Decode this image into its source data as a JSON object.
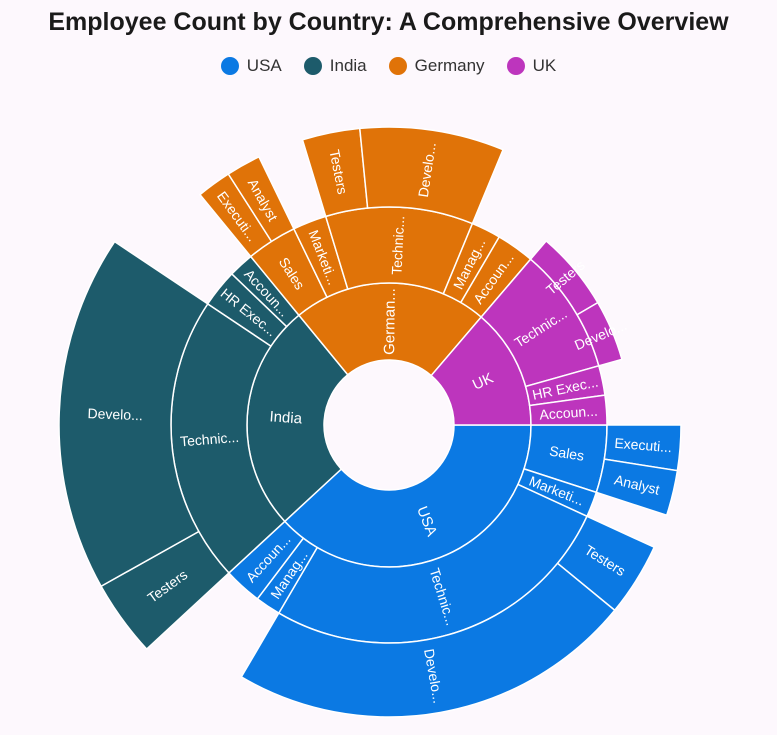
{
  "chart_data": {
    "type": "sunburst",
    "title": "Employee Count by Country: A Comprehensive Overview",
    "legend_position": "top",
    "series": [
      {
        "name": "USA",
        "color": "#0b79e3",
        "labels": {
          "country": "USA",
          "branches": [
            "Sales",
            "Marketi...",
            "Technic...",
            "Manag...",
            "Accoun..."
          ],
          "leaves": [
            "Executi...",
            "Analyst",
            "Testers",
            "Develo..."
          ]
        }
      },
      {
        "name": "India",
        "color": "#1d5b6b",
        "labels": {
          "country": "India",
          "branches": [
            "Technic...",
            "HR Exec...",
            "Accoun..."
          ],
          "leaves": [
            "Testers",
            "Develo..."
          ]
        }
      },
      {
        "name": "Germany",
        "color": "#e07308",
        "labels": {
          "country": "German...",
          "branches": [
            "Sales",
            "Marketi...",
            "Technic...",
            "Manag...",
            "Accoun..."
          ],
          "leaves": [
            "Executi...",
            "Analyst",
            "Testers",
            "Develo..."
          ]
        }
      },
      {
        "name": "UK",
        "color": "#bd35bd",
        "labels": {
          "country": "UK",
          "branches": [
            "Technic...",
            "HR Exec...",
            "Accoun..."
          ],
          "leaves": [
            "Testers",
            "Develo..."
          ]
        }
      }
    ],
    "hierarchy": [
      {
        "name": "USA",
        "color": "#0b79e3",
        "label": "USA",
        "value": 122,
        "children": [
          {
            "name": "Sales",
            "label": "Sales",
            "value": 16,
            "children": [
              {
                "name": "Executive",
                "label": "Executi...",
                "value": 8
              },
              {
                "name": "Analyst",
                "label": "Analyst",
                "value": 8
              }
            ]
          },
          {
            "name": "Marketing",
            "label": "Marketi...",
            "value": 6
          },
          {
            "name": "Technical",
            "label": "Technic...",
            "value": 85,
            "children": [
              {
                "name": "Testers",
                "label": "Testers",
                "value": 13
              },
              {
                "name": "Developers",
                "label": "Develo...",
                "value": 72
              }
            ]
          },
          {
            "name": "Management",
            "label": "Manag...",
            "value": 6
          },
          {
            "name": "Accounts",
            "label": "Accoun...",
            "value": 9
          }
        ]
      },
      {
        "name": "India",
        "color": "#1d5b6b",
        "label": "India",
        "value": 83,
        "children": [
          {
            "name": "Technical",
            "label": "Technic...",
            "value": 68,
            "children": [
              {
                "name": "Testers",
                "label": "Testers",
                "value": 12
              },
              {
                "name": "Developers",
                "label": "Develo...",
                "value": 56
              }
            ]
          },
          {
            "name": "HR Executives",
            "label": "HR Exec...",
            "value": 9
          },
          {
            "name": "Accounts",
            "label": "Accoun...",
            "value": 6
          }
        ]
      },
      {
        "name": "Germany",
        "color": "#e07308",
        "label": "German...",
        "value": 71,
        "children": [
          {
            "name": "Sales",
            "label": "Sales",
            "value": 12,
            "children": [
              {
                "name": "Executive",
                "label": "Executi...",
                "value": 6
              },
              {
                "name": "Analyst",
                "label": "Analyst",
                "value": 6
              }
            ]
          },
          {
            "name": "Marketing",
            "label": "Marketi...",
            "value": 8
          },
          {
            "name": "Technical",
            "label": "Technic...",
            "value": 35,
            "children": [
              {
                "name": "Testers",
                "label": "Testers",
                "value": 10
              },
              {
                "name": "Developers",
                "label": "Develo...",
                "value": 25
              }
            ]
          },
          {
            "name": "Management",
            "label": "Manag...",
            "value": 7
          },
          {
            "name": "Accounts",
            "label": "Accoun...",
            "value": 9
          }
        ]
      },
      {
        "name": "UK",
        "color": "#bd35bd",
        "label": "UK",
        "value": 44,
        "children": [
          {
            "name": "Technical",
            "label": "Technic...",
            "value": 30,
            "children": [
              {
                "name": "Testers",
                "label": "Testers",
                "value": 17
              },
              {
                "name": "Developers",
                "label": "Develo...",
                "value": 13
              }
            ]
          },
          {
            "name": "HR Executives",
            "label": "HR Exec...",
            "value": 7
          },
          {
            "name": "Accounts",
            "label": "Accoun...",
            "value": 7
          }
        ]
      }
    ]
  }
}
